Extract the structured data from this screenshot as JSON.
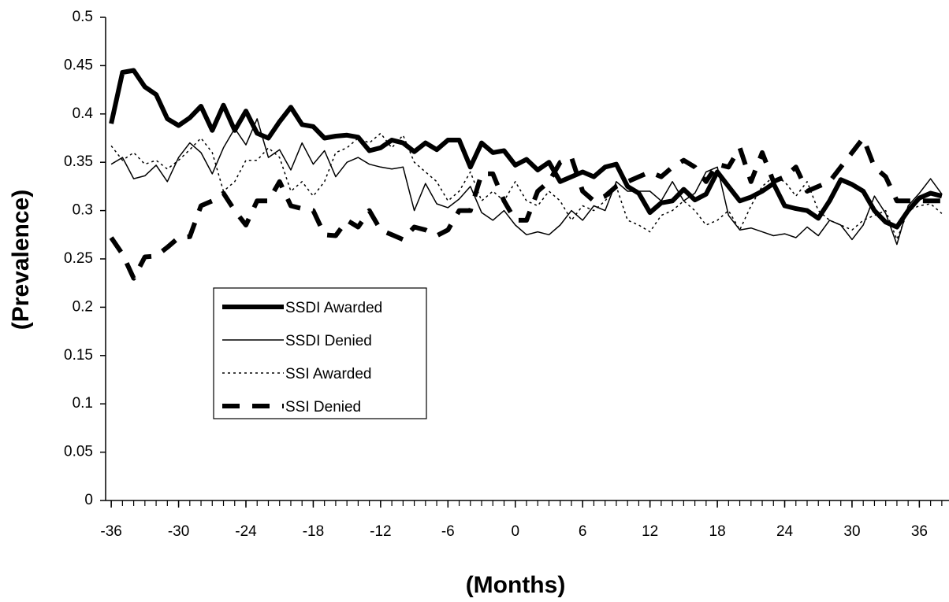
{
  "chart_data": {
    "type": "line",
    "x_label": "(Months)",
    "y_label": "(Prevalence)",
    "x": [
      -36,
      -35,
      -34,
      -33,
      -32,
      -31,
      -30,
      -29,
      -28,
      -27,
      -26,
      -25,
      -24,
      -23,
      -22,
      -21,
      -20,
      -19,
      -18,
      -17,
      -16,
      -15,
      -14,
      -13,
      -12,
      -11,
      -10,
      -9,
      -8,
      -7,
      -6,
      -5,
      -4,
      -3,
      -2,
      -1,
      0,
      1,
      2,
      3,
      4,
      5,
      6,
      7,
      8,
      9,
      10,
      11,
      12,
      13,
      14,
      15,
      16,
      17,
      18,
      19,
      20,
      21,
      22,
      23,
      24,
      25,
      26,
      27,
      28,
      29,
      30,
      31,
      32,
      33,
      34,
      35,
      36,
      37,
      38
    ],
    "series": [
      {
        "name": "SSDI Awarded",
        "color": "#000000",
        "width": 6,
        "dash": "none",
        "values": [
          0.39,
          0.443,
          0.445,
          0.428,
          0.42,
          0.395,
          0.388,
          0.396,
          0.408,
          0.383,
          0.409,
          0.383,
          0.403,
          0.38,
          0.375,
          0.392,
          0.407,
          0.389,
          0.387,
          0.375,
          0.377,
          0.378,
          0.376,
          0.362,
          0.365,
          0.373,
          0.37,
          0.361,
          0.37,
          0.363,
          0.373,
          0.373,
          0.345,
          0.37,
          0.36,
          0.362,
          0.347,
          0.353,
          0.342,
          0.35,
          0.33,
          0.335,
          0.34,
          0.335,
          0.345,
          0.348,
          0.325,
          0.318,
          0.298,
          0.308,
          0.31,
          0.322,
          0.311,
          0.317,
          0.34,
          0.325,
          0.31,
          0.314,
          0.32,
          0.328,
          0.305,
          0.302,
          0.3,
          0.292,
          0.31,
          0.332,
          0.327,
          0.32,
          0.3,
          0.288,
          0.283,
          0.3,
          0.313,
          0.318,
          0.315
        ]
      },
      {
        "name": "SSDI Denied",
        "color": "#000000",
        "width": 1.5,
        "dash": "none",
        "values": [
          0.348,
          0.355,
          0.333,
          0.336,
          0.347,
          0.33,
          0.355,
          0.37,
          0.36,
          0.338,
          0.365,
          0.385,
          0.368,
          0.395,
          0.355,
          0.363,
          0.342,
          0.37,
          0.348,
          0.362,
          0.335,
          0.35,
          0.355,
          0.348,
          0.345,
          0.343,
          0.345,
          0.3,
          0.328,
          0.307,
          0.303,
          0.312,
          0.325,
          0.298,
          0.29,
          0.3,
          0.285,
          0.275,
          0.278,
          0.275,
          0.285,
          0.3,
          0.29,
          0.305,
          0.3,
          0.33,
          0.32,
          0.32,
          0.32,
          0.31,
          0.33,
          0.31,
          0.318,
          0.34,
          0.345,
          0.295,
          0.28,
          0.282,
          0.278,
          0.274,
          0.276,
          0.272,
          0.283,
          0.274,
          0.29,
          0.285,
          0.27,
          0.285,
          0.315,
          0.297,
          0.265,
          0.305,
          0.318,
          0.333,
          0.317
        ]
      },
      {
        "name": "SSI Awarded",
        "color": "#000000",
        "width": 1.5,
        "dash": "3,4",
        "values": [
          0.367,
          0.352,
          0.36,
          0.348,
          0.352,
          0.343,
          0.352,
          0.363,
          0.375,
          0.36,
          0.32,
          0.33,
          0.352,
          0.352,
          0.365,
          0.355,
          0.32,
          0.33,
          0.315,
          0.33,
          0.36,
          0.365,
          0.375,
          0.37,
          0.38,
          0.365,
          0.378,
          0.35,
          0.34,
          0.33,
          0.31,
          0.32,
          0.34,
          0.31,
          0.32,
          0.31,
          0.33,
          0.31,
          0.305,
          0.32,
          0.31,
          0.29,
          0.305,
          0.3,
          0.31,
          0.325,
          0.29,
          0.285,
          0.278,
          0.295,
          0.3,
          0.31,
          0.3,
          0.285,
          0.29,
          0.3,
          0.28,
          0.305,
          0.325,
          0.335,
          0.33,
          0.315,
          0.33,
          0.3,
          0.29,
          0.285,
          0.28,
          0.29,
          0.295,
          0.3,
          0.27,
          0.3,
          0.305,
          0.307,
          0.297
        ]
      },
      {
        "name": "SSI Denied",
        "color": "#000000",
        "width": 6,
        "dash": "22,16",
        "values": [
          0.272,
          0.255,
          0.23,
          0.252,
          0.253,
          0.262,
          0.272,
          0.273,
          0.305,
          0.31,
          0.318,
          0.3,
          0.285,
          0.31,
          0.31,
          0.33,
          0.305,
          0.302,
          0.3,
          0.275,
          0.274,
          0.29,
          0.283,
          0.3,
          0.28,
          0.275,
          0.27,
          0.283,
          0.28,
          0.274,
          0.28,
          0.3,
          0.3,
          0.338,
          0.338,
          0.31,
          0.29,
          0.29,
          0.32,
          0.33,
          0.35,
          0.355,
          0.32,
          0.31,
          0.315,
          0.325,
          0.33,
          0.335,
          0.34,
          0.335,
          0.345,
          0.352,
          0.345,
          0.33,
          0.348,
          0.345,
          0.365,
          0.33,
          0.36,
          0.33,
          0.335,
          0.345,
          0.32,
          0.325,
          0.33,
          0.345,
          0.36,
          0.375,
          0.345,
          0.335,
          0.31,
          0.31,
          0.31,
          0.31,
          0.31
        ]
      }
    ],
    "xlim": [
      -36.5,
      38.5
    ],
    "xticks": [
      -36,
      -30,
      -24,
      -18,
      -12,
      -6,
      0,
      6,
      12,
      18,
      24,
      30,
      36
    ],
    "ylim": [
      0,
      0.5
    ],
    "yticks": [
      0,
      0.05,
      0.1,
      0.15,
      0.2,
      0.25,
      0.3,
      0.35,
      0.4,
      0.45,
      0.5
    ],
    "grid": false,
    "legend": "left"
  }
}
